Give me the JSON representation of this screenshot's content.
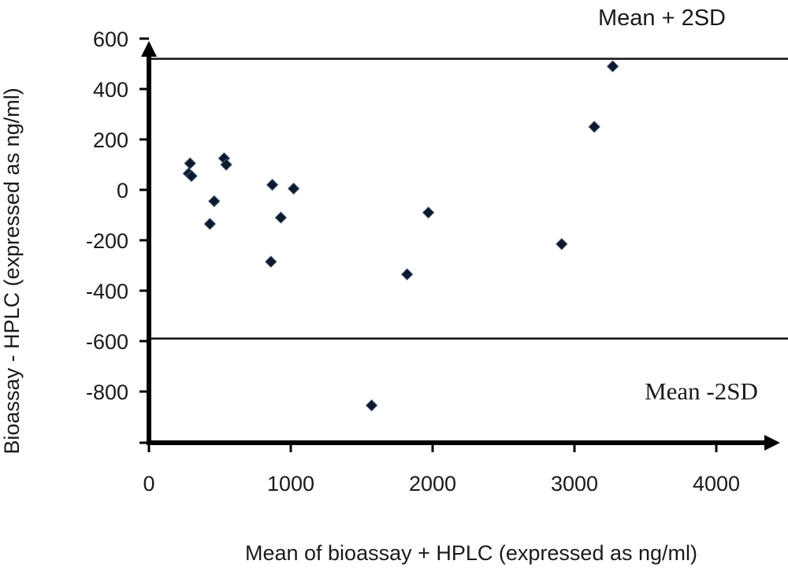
{
  "chart_data": {
    "type": "scatter",
    "xlabel": "Mean of bioassay + HPLC (expressed as ng/ml)",
    "ylabel": "Bioassay - HPLC (expressed as ng/ml)",
    "xlim": [
      0,
      4500
    ],
    "ylim": [
      -1000,
      600
    ],
    "xticks": [
      0,
      1000,
      2000,
      3000,
      4000
    ],
    "yticks": [
      600,
      400,
      200,
      0,
      -200,
      -400,
      -600,
      -800
    ],
    "x_tick_labels": [
      "0",
      "1000",
      "2000",
      "3000",
      "4000"
    ],
    "y_tick_labels": [
      "600",
      "400",
      "200",
      "0",
      "-200",
      "-400",
      "-600",
      "-800"
    ],
    "grid": false,
    "marker": "diamond",
    "marker_color": "#0d1a2e",
    "reference_lines": [
      {
        "label": "Mean + 2SD",
        "y": 520
      },
      {
        "label": "Mean -2SD",
        "y": -590
      }
    ],
    "points": [
      {
        "x": 290,
        "y": 105
      },
      {
        "x": 280,
        "y": 65
      },
      {
        "x": 300,
        "y": 55
      },
      {
        "x": 530,
        "y": 125
      },
      {
        "x": 545,
        "y": 100
      },
      {
        "x": 460,
        "y": -45
      },
      {
        "x": 430,
        "y": -135
      },
      {
        "x": 870,
        "y": 20
      },
      {
        "x": 1020,
        "y": 5
      },
      {
        "x": 930,
        "y": -110
      },
      {
        "x": 860,
        "y": -285
      },
      {
        "x": 1570,
        "y": -855
      },
      {
        "x": 1820,
        "y": -335
      },
      {
        "x": 1970,
        "y": -90
      },
      {
        "x": 2910,
        "y": -215
      },
      {
        "x": 3140,
        "y": 250
      },
      {
        "x": 3270,
        "y": 490
      }
    ]
  }
}
